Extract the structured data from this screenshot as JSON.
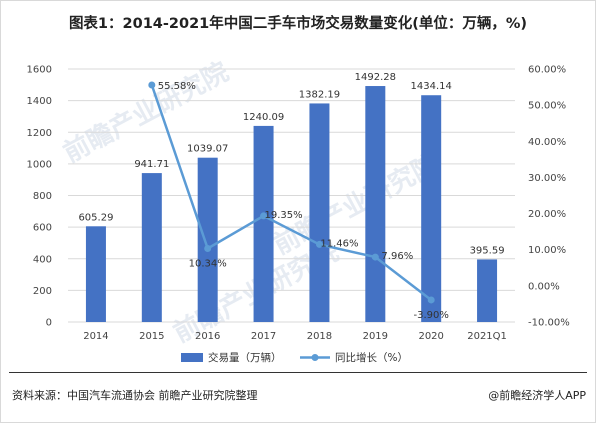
{
  "title": "图表1：2014-2021年中国二手车市场交易数量变化(单位：万辆，%)",
  "source": "资料来源：中国汽车流通协会 前瞻产业研究院整理",
  "credit": "@前瞻经济学人APP",
  "watermark": "前瞻产业研究院",
  "chart_data": {
    "type": "bar",
    "categories": [
      "2014",
      "2015",
      "2016",
      "2017",
      "2018",
      "2019",
      "2020",
      "2021Q1"
    ],
    "series": [
      {
        "name": "交易量（万辆）",
        "type": "bar",
        "axis": "left",
        "color": "#4472c4",
        "values": [
          605.29,
          941.71,
          1039.07,
          1240.09,
          1382.19,
          1492.28,
          1434.14,
          395.59
        ],
        "labels": [
          "605.29",
          "941.71",
          "1039.07",
          "1240.09",
          "1382.19",
          "1492.28",
          "1434.14",
          "395.59"
        ]
      },
      {
        "name": "同比增长（%）",
        "type": "line",
        "axis": "right",
        "color": "#5b9bd5",
        "values": [
          null,
          55.58,
          10.34,
          19.35,
          11.46,
          7.96,
          -3.9,
          null
        ],
        "labels": [
          null,
          "55.58%",
          "10.34%",
          "19.35%",
          "11.46%",
          "7.96%",
          "-3.90%",
          null
        ]
      }
    ],
    "y_left": {
      "ylim": [
        0,
        1600
      ],
      "ticks": [
        "0",
        "200",
        "400",
        "600",
        "800",
        "1000",
        "1200",
        "1400",
        "1600"
      ]
    },
    "y_right": {
      "ylim": [
        -10,
        60
      ],
      "ticks": [
        "-10.00%",
        "0.00%",
        "10.00%",
        "20.00%",
        "30.00%",
        "40.00%",
        "50.00%",
        "60.00%"
      ]
    },
    "grid": true,
    "legend_position": "bottom"
  }
}
